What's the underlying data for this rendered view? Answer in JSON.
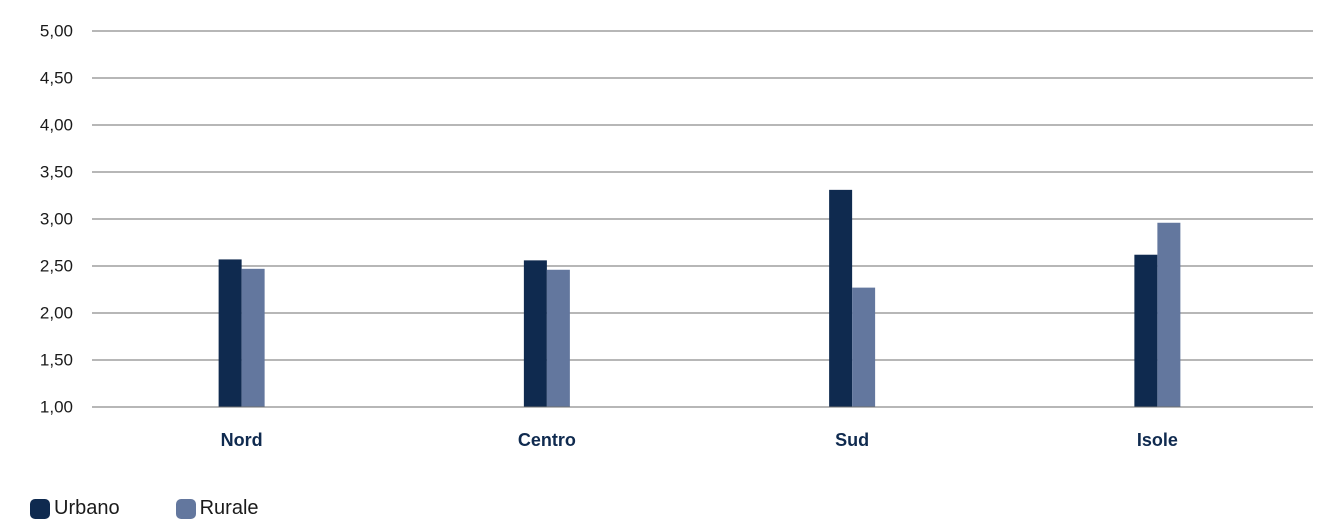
{
  "chart_data": {
    "type": "bar",
    "title": "",
    "xlabel": "",
    "ylabel": "",
    "categories": [
      "Nord",
      "Centro",
      "Sud",
      "Isole"
    ],
    "series": [
      {
        "name": "Urbano",
        "color": "#0f2a4f",
        "values": [
          2.57,
          2.56,
          3.31,
          2.62
        ]
      },
      {
        "name": "Rurale",
        "color": "#63779e",
        "values": [
          2.47,
          2.46,
          2.27,
          2.96
        ]
      }
    ],
    "ylim": [
      1.0,
      5.0
    ],
    "yticks": [
      1.0,
      1.5,
      2.0,
      2.5,
      3.0,
      3.5,
      4.0,
      4.5,
      5.0
    ],
    "ytick_labels": [
      "1,00",
      "1,50",
      "2,00",
      "2,50",
      "3,00",
      "3,50",
      "4,00",
      "4,50",
      "5,00"
    ],
    "grid": true,
    "legend_position": "bottom-left"
  }
}
